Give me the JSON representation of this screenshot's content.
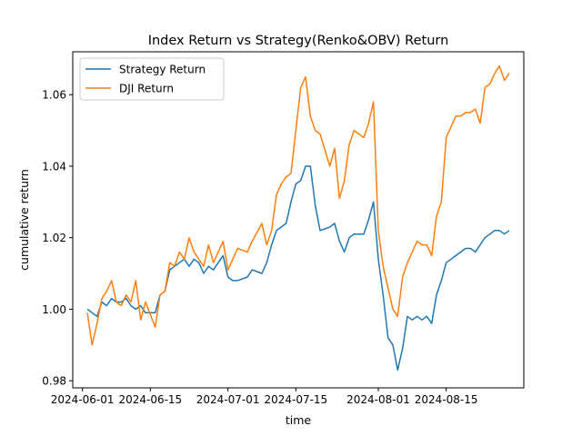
{
  "chart_data": {
    "type": "line",
    "title": "Index Return vs Strategy(Renko&OBV) Return",
    "xlabel": "time",
    "ylabel": "cumulative return",
    "xlim": [
      "2024-05-30",
      "2024-08-31"
    ],
    "ylim": [
      0.978,
      1.072
    ],
    "x_ticks": [
      "2024-06-01",
      "2024-06-15",
      "2024-07-01",
      "2024-07-15",
      "2024-08-01",
      "2024-08-15"
    ],
    "y_ticks": [
      0.98,
      1.0,
      1.02,
      1.04,
      1.06
    ],
    "y_tick_labels": [
      "0.98",
      "1.00",
      "1.02",
      "1.04",
      "1.06"
    ],
    "grid": false,
    "legend": "upper left",
    "series": [
      {
        "name": "Strategy Return",
        "color": "#1f77b4",
        "points": [
          [
            "2024-06-02",
            1.0
          ],
          [
            "2024-06-03",
            0.999
          ],
          [
            "2024-06-04",
            0.998
          ],
          [
            "2024-06-05",
            1.002
          ],
          [
            "2024-06-06",
            1.001
          ],
          [
            "2024-06-07",
            1.003
          ],
          [
            "2024-06-08",
            1.002
          ],
          [
            "2024-06-09",
            1.002
          ],
          [
            "2024-06-10",
            1.003
          ],
          [
            "2024-06-11",
            1.001
          ],
          [
            "2024-06-12",
            1.0
          ],
          [
            "2024-06-13",
            1.001
          ],
          [
            "2024-06-14",
            0.999
          ],
          [
            "2024-06-16",
            0.999
          ],
          [
            "2024-06-17",
            1.004
          ],
          [
            "2024-06-18",
            1.005
          ],
          [
            "2024-06-19",
            1.011
          ],
          [
            "2024-06-20",
            1.012
          ],
          [
            "2024-06-21",
            1.013
          ],
          [
            "2024-06-22",
            1.014
          ],
          [
            "2024-06-23",
            1.012
          ],
          [
            "2024-06-24",
            1.014
          ],
          [
            "2024-06-25",
            1.013
          ],
          [
            "2024-06-26",
            1.01
          ],
          [
            "2024-06-27",
            1.012
          ],
          [
            "2024-06-28",
            1.011
          ],
          [
            "2024-06-29",
            1.013
          ],
          [
            "2024-06-30",
            1.015
          ],
          [
            "2024-07-01",
            1.009
          ],
          [
            "2024-07-02",
            1.008
          ],
          [
            "2024-07-03",
            1.008
          ],
          [
            "2024-07-05",
            1.009
          ],
          [
            "2024-07-06",
            1.011
          ],
          [
            "2024-07-08",
            1.01
          ],
          [
            "2024-07-09",
            1.013
          ],
          [
            "2024-07-10",
            1.018
          ],
          [
            "2024-07-11",
            1.022
          ],
          [
            "2024-07-12",
            1.023
          ],
          [
            "2024-07-13",
            1.024
          ],
          [
            "2024-07-14",
            1.03
          ],
          [
            "2024-07-15",
            1.035
          ],
          [
            "2024-07-16",
            1.036
          ],
          [
            "2024-07-17",
            1.04
          ],
          [
            "2024-07-18",
            1.04
          ],
          [
            "2024-07-19",
            1.029
          ],
          [
            "2024-07-20",
            1.022
          ],
          [
            "2024-07-22",
            1.023
          ],
          [
            "2024-07-23",
            1.024
          ],
          [
            "2024-07-24",
            1.019
          ],
          [
            "2024-07-25",
            1.016
          ],
          [
            "2024-07-26",
            1.02
          ],
          [
            "2024-07-27",
            1.021
          ],
          [
            "2024-07-29",
            1.021
          ],
          [
            "2024-07-30",
            1.025
          ],
          [
            "2024-07-31",
            1.03
          ],
          [
            "2024-08-01",
            1.014
          ],
          [
            "2024-08-02",
            1.004
          ],
          [
            "2024-08-03",
            0.992
          ],
          [
            "2024-08-04",
            0.99
          ],
          [
            "2024-08-05",
            0.983
          ],
          [
            "2024-08-06",
            0.989
          ],
          [
            "2024-08-07",
            0.998
          ],
          [
            "2024-08-08",
            0.997
          ],
          [
            "2024-08-09",
            0.998
          ],
          [
            "2024-08-10",
            0.997
          ],
          [
            "2024-08-11",
            0.998
          ],
          [
            "2024-08-12",
            0.996
          ],
          [
            "2024-08-13",
            1.004
          ],
          [
            "2024-08-14",
            1.008
          ],
          [
            "2024-08-15",
            1.013
          ],
          [
            "2024-08-16",
            1.014
          ],
          [
            "2024-08-17",
            1.015
          ],
          [
            "2024-08-18",
            1.016
          ],
          [
            "2024-08-19",
            1.017
          ],
          [
            "2024-08-20",
            1.017
          ],
          [
            "2024-08-21",
            1.016
          ],
          [
            "2024-08-22",
            1.018
          ],
          [
            "2024-08-23",
            1.02
          ],
          [
            "2024-08-24",
            1.021
          ],
          [
            "2024-08-25",
            1.022
          ],
          [
            "2024-08-26",
            1.022
          ],
          [
            "2024-08-27",
            1.021
          ],
          [
            "2024-08-28",
            1.022
          ]
        ]
      },
      {
        "name": "DJI Return",
        "color": "#ff7f0e",
        "points": [
          [
            "2024-06-02",
            0.999
          ],
          [
            "2024-06-03",
            0.99
          ],
          [
            "2024-06-04",
            0.996
          ],
          [
            "2024-06-05",
            1.003
          ],
          [
            "2024-06-06",
            1.005
          ],
          [
            "2024-06-07",
            1.008
          ],
          [
            "2024-06-08",
            1.002
          ],
          [
            "2024-06-09",
            1.001
          ],
          [
            "2024-06-10",
            1.004
          ],
          [
            "2024-06-11",
            1.002
          ],
          [
            "2024-06-12",
            1.008
          ],
          [
            "2024-06-13",
            0.997
          ],
          [
            "2024-06-14",
            1.002
          ],
          [
            "2024-06-16",
            0.995
          ],
          [
            "2024-06-17",
            1.004
          ],
          [
            "2024-06-18",
            1.005
          ],
          [
            "2024-06-19",
            1.013
          ],
          [
            "2024-06-20",
            1.012
          ],
          [
            "2024-06-21",
            1.016
          ],
          [
            "2024-06-22",
            1.014
          ],
          [
            "2024-06-23",
            1.02
          ],
          [
            "2024-06-24",
            1.016
          ],
          [
            "2024-06-25",
            1.014
          ],
          [
            "2024-06-26",
            1.012
          ],
          [
            "2024-06-27",
            1.018
          ],
          [
            "2024-06-28",
            1.013
          ],
          [
            "2024-06-29",
            1.016
          ],
          [
            "2024-06-30",
            1.019
          ],
          [
            "2024-07-01",
            1.011
          ],
          [
            "2024-07-02",
            1.014
          ],
          [
            "2024-07-03",
            1.017
          ],
          [
            "2024-07-05",
            1.016
          ],
          [
            "2024-07-06",
            1.019
          ],
          [
            "2024-07-08",
            1.024
          ],
          [
            "2024-07-09",
            1.018
          ],
          [
            "2024-07-10",
            1.022
          ],
          [
            "2024-07-11",
            1.032
          ],
          [
            "2024-07-12",
            1.035
          ],
          [
            "2024-07-13",
            1.037
          ],
          [
            "2024-07-14",
            1.038
          ],
          [
            "2024-07-15",
            1.05
          ],
          [
            "2024-07-16",
            1.062
          ],
          [
            "2024-07-17",
            1.065
          ],
          [
            "2024-07-18",
            1.054
          ],
          [
            "2024-07-19",
            1.05
          ],
          [
            "2024-07-20",
            1.049
          ],
          [
            "2024-07-22",
            1.04
          ],
          [
            "2024-07-23",
            1.045
          ],
          [
            "2024-07-24",
            1.031
          ],
          [
            "2024-07-25",
            1.036
          ],
          [
            "2024-07-26",
            1.046
          ],
          [
            "2024-07-27",
            1.05
          ],
          [
            "2024-07-29",
            1.048
          ],
          [
            "2024-07-30",
            1.052
          ],
          [
            "2024-07-31",
            1.058
          ],
          [
            "2024-08-01",
            1.022
          ],
          [
            "2024-08-02",
            1.012
          ],
          [
            "2024-08-03",
            1.006
          ],
          [
            "2024-08-04",
            1.0
          ],
          [
            "2024-08-05",
            0.998
          ],
          [
            "2024-08-06",
            1.009
          ],
          [
            "2024-08-07",
            1.013
          ],
          [
            "2024-08-08",
            1.016
          ],
          [
            "2024-08-09",
            1.019
          ],
          [
            "2024-08-10",
            1.018
          ],
          [
            "2024-08-11",
            1.018
          ],
          [
            "2024-08-12",
            1.015
          ],
          [
            "2024-08-13",
            1.026
          ],
          [
            "2024-08-14",
            1.03
          ],
          [
            "2024-08-15",
            1.048
          ],
          [
            "2024-08-16",
            1.051
          ],
          [
            "2024-08-17",
            1.054
          ],
          [
            "2024-08-18",
            1.054
          ],
          [
            "2024-08-19",
            1.055
          ],
          [
            "2024-08-20",
            1.055
          ],
          [
            "2024-08-21",
            1.056
          ],
          [
            "2024-08-22",
            1.052
          ],
          [
            "2024-08-23",
            1.062
          ],
          [
            "2024-08-24",
            1.063
          ],
          [
            "2024-08-25",
            1.066
          ],
          [
            "2024-08-26",
            1.068
          ],
          [
            "2024-08-27",
            1.064
          ],
          [
            "2024-08-28",
            1.066
          ]
        ]
      }
    ]
  }
}
